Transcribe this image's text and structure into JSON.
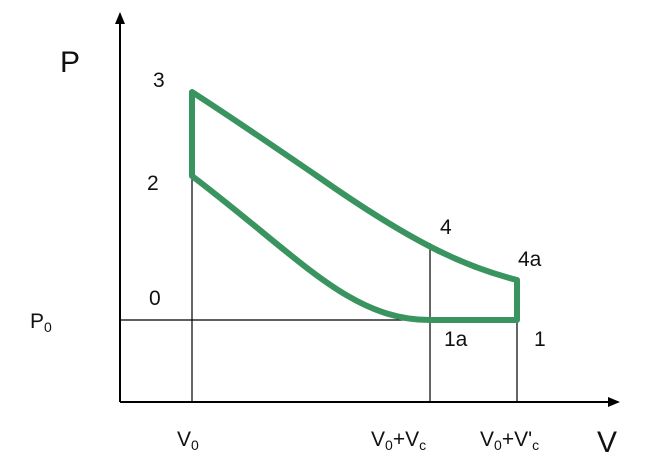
{
  "axes": {
    "y_title": "P",
    "x_title": "V"
  },
  "labels": {
    "pressure_ref": {
      "main": "P",
      "sub": "0"
    },
    "points": {
      "p0": "0",
      "p1": "1",
      "p1a": "1a",
      "p2": "2",
      "p3": "3",
      "p4": "4",
      "p4a": "4a"
    },
    "x_ticks": {
      "v0": {
        "a": "V",
        "a_sub": "0"
      },
      "v0vc": {
        "a": "V",
        "a_sub": "0",
        "mid": "+V",
        "b_sub": "c"
      },
      "v0vcp": {
        "a": "V",
        "a_sub": "0",
        "mid": "+V'",
        "b_sub": "c"
      }
    }
  },
  "colors": {
    "cycle": "#3a9460",
    "lines": "#000000"
  }
}
